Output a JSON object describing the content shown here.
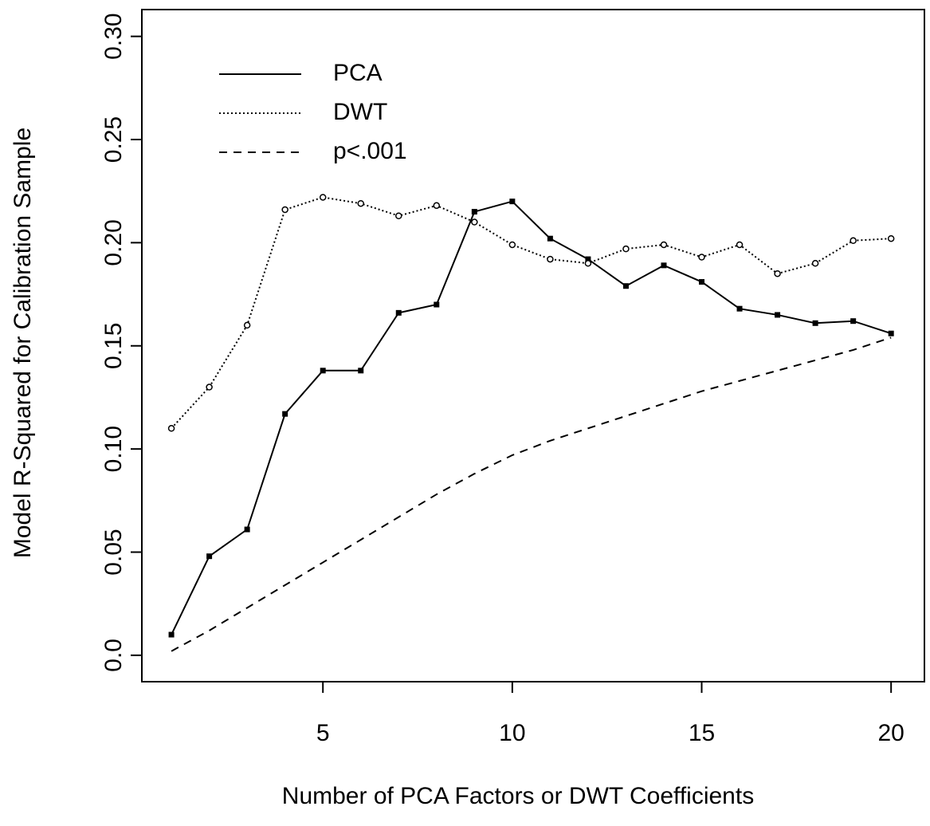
{
  "chart_data": {
    "type": "line",
    "x_label": "Number of PCA Factors or DWT Coefficients",
    "y_label": "Model R-Squared for Calibration Sample",
    "x": [
      1,
      2,
      3,
      4,
      5,
      6,
      7,
      8,
      9,
      10,
      11,
      12,
      13,
      14,
      15,
      16,
      17,
      18,
      19,
      20
    ],
    "series": [
      {
        "name": "PCA",
        "color": "#000000",
        "dash": "solid",
        "marker": "square",
        "values": [
          0.01,
          0.048,
          0.061,
          0.117,
          0.138,
          0.138,
          0.166,
          0.17,
          0.215,
          0.22,
          0.202,
          0.192,
          0.179,
          0.189,
          0.181,
          0.168,
          0.165,
          0.161,
          0.162,
          0.156
        ]
      },
      {
        "name": "DWT",
        "color": "#000000",
        "dash": "dotted",
        "marker": "circle",
        "values": [
          0.11,
          0.13,
          0.16,
          0.216,
          0.222,
          0.219,
          0.213,
          0.218,
          0.21,
          0.199,
          0.192,
          0.19,
          0.197,
          0.199,
          0.193,
          0.199,
          0.185,
          0.19,
          0.201,
          0.202
        ]
      },
      {
        "name": "p<.001",
        "color": "#000000",
        "dash": "dashed",
        "marker": "none",
        "values": [
          0.002,
          0.012,
          0.023,
          0.034,
          0.045,
          0.056,
          0.067,
          0.078,
          0.088,
          0.097,
          0.104,
          0.11,
          0.116,
          0.122,
          0.128,
          0.133,
          0.138,
          0.143,
          0.148,
          0.154
        ]
      }
    ],
    "xlim": [
      0.22,
      20.88
    ],
    "xticks": [
      5,
      10,
      15,
      20
    ],
    "ylim": [
      -0.0128,
      0.313
    ],
    "yticks": [
      {
        "value": 0,
        "label": "0.0"
      },
      0.05,
      {
        "value": 0.1,
        "label": "0.10"
      },
      0.15,
      {
        "value": 0.2,
        "label": "0.20"
      },
      0.25,
      {
        "value": 0.3,
        "label": "0.30"
      }
    ],
    "legend": "top-left"
  }
}
